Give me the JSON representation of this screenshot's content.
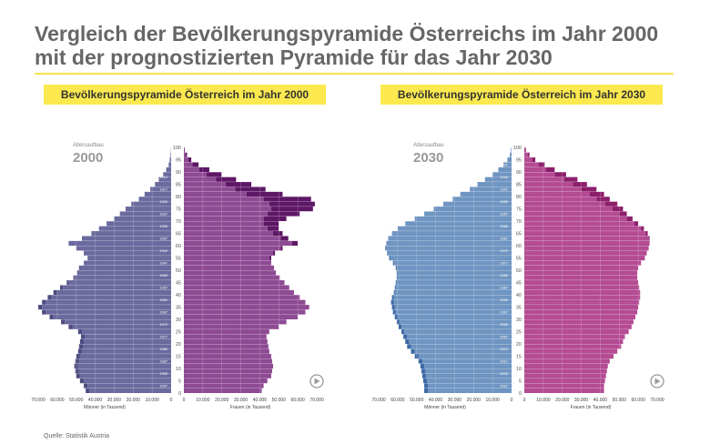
{
  "header": {
    "title": "Vergleich der Bevölkerungspyramide Österreichs im Jahr 2000 mit der prognostizierten Pyramide für das Jahr 2030"
  },
  "panels": [
    {
      "banner": "Bevölkerungspyramide Österreich im Jahr 2000"
    },
    {
      "banner": "Bevölkerungspyramide Österreich im Jahr 2030"
    }
  ],
  "footer": {
    "source": "Quelle: Statistik Austria"
  },
  "colors": {
    "banner": "#fbe94f",
    "male_2000": "#6b6a9e",
    "female_2000": "#8e4a93",
    "male_2030": "#6f95c2",
    "female_2030": "#b44b93",
    "male_surplus_2000": "#4d4b80",
    "female_surplus_2000": "#5e1766",
    "male_surplus_2030": "#3e6aa6",
    "female_surplus_2030": "#8c1f6b"
  },
  "chart_data": [
    {
      "type": "bar",
      "orientation": "horizontal-pyramid",
      "year_label": "2000",
      "age_axis_label": "Altersaufbau",
      "age_ticks": [
        0,
        5,
        10,
        15,
        20,
        25,
        30,
        35,
        40,
        45,
        50,
        55,
        60,
        65,
        70,
        75,
        80,
        85,
        90,
        95,
        100
      ],
      "birth_year_ticks": [
        "1997",
        "1992",
        "1987",
        "1982",
        "1977",
        "1972",
        "1967",
        "1962",
        "1957",
        "1952",
        "1947",
        "1942",
        "1937",
        "1932",
        "1927",
        "1922",
        "1917",
        "1912",
        "1907"
      ],
      "x_ticks_left": [
        "70.000",
        "60.000",
        "50.000",
        "40.000",
        "30.000",
        "20.000",
        "10.000",
        "0"
      ],
      "x_ticks_right": [
        "0",
        "10.000",
        "20.000",
        "30.000",
        "40.000",
        "50.000",
        "60.000",
        "70.000"
      ],
      "xlabel_left": "Männer (in Tausend)",
      "xlabel_right": "Frauen (in Tausend)",
      "xlim": [
        0,
        70000
      ],
      "ages": [
        0,
        2,
        4,
        6,
        8,
        10,
        12,
        14,
        16,
        18,
        20,
        22,
        24,
        26,
        28,
        30,
        32,
        34,
        36,
        38,
        40,
        42,
        44,
        46,
        48,
        50,
        52,
        54,
        56,
        58,
        60,
        62,
        64,
        66,
        68,
        70,
        72,
        74,
        76,
        78,
        80,
        82,
        84,
        86,
        88,
        90,
        92,
        94,
        96,
        98
      ],
      "series": [
        {
          "name": "Männer",
          "values": [
            43000,
            44000,
            46000,
            48000,
            48500,
            49000,
            48500,
            48000,
            47000,
            46500,
            46000,
            45500,
            47000,
            52000,
            56000,
            62000,
            66000,
            68000,
            66000,
            63000,
            60000,
            57000,
            54000,
            51000,
            49000,
            48000,
            46000,
            44000,
            46000,
            50000,
            54000,
            47000,
            42000,
            38000,
            34000,
            30000,
            27000,
            24000,
            21000,
            17000,
            14000,
            11000,
            8500,
            6500,
            4200,
            2600,
            1300,
            700,
            300,
            100
          ]
        },
        {
          "name": "Frauen",
          "values": [
            41000,
            42000,
            44000,
            46000,
            46500,
            47000,
            46500,
            46000,
            45000,
            44500,
            44000,
            43500,
            45000,
            50000,
            54000,
            60000,
            64000,
            66000,
            64000,
            61000,
            58000,
            55500,
            53000,
            50500,
            48500,
            47500,
            46000,
            45000,
            47000,
            51000,
            57000,
            51000,
            47000,
            44000,
            42000,
            42000,
            44000,
            46000,
            45000,
            42000,
            33000,
            27000,
            22000,
            17000,
            12000,
            8000,
            4500,
            2300,
            1000,
            300
          ]
        },
        {
          "name": "Männerüberschuss",
          "values": [
            2000,
            2000,
            2000,
            2000,
            2000,
            2000,
            2000,
            2000,
            2000,
            2000,
            2000,
            2000,
            2000,
            2000,
            2000,
            2000,
            2000,
            2000,
            2000,
            2000,
            2000,
            1500,
            1000,
            500,
            500,
            500,
            0,
            0,
            0,
            0,
            0,
            0,
            0,
            0,
            0,
            0,
            0,
            0,
            0,
            0,
            0,
            0,
            0,
            0,
            0,
            0,
            0,
            0,
            0,
            0
          ]
        },
        {
          "name": "Frauenüberschuss",
          "values": [
            0,
            0,
            0,
            0,
            0,
            0,
            0,
            0,
            0,
            0,
            0,
            0,
            0,
            0,
            0,
            0,
            0,
            0,
            0,
            0,
            0,
            0,
            0,
            0,
            0,
            0,
            0,
            1000,
            1000,
            1000,
            3000,
            4000,
            5000,
            6000,
            8000,
            12000,
            17000,
            22000,
            24000,
            25000,
            19000,
            16000,
            13500,
            10500,
            7800,
            5400,
            3200,
            1600,
            700,
            200
          ]
        }
      ]
    },
    {
      "type": "bar",
      "orientation": "horizontal-pyramid",
      "year_label": "2030",
      "age_axis_label": "Altersaufbau",
      "age_ticks": [
        0,
        5,
        10,
        15,
        20,
        25,
        30,
        35,
        40,
        45,
        50,
        55,
        60,
        65,
        70,
        75,
        80,
        85,
        90,
        95,
        100
      ],
      "birth_year_ticks": [
        "2027",
        "2022",
        "2017",
        "2012",
        "2007",
        "2002",
        "1997",
        "1992",
        "1987",
        "1982",
        "1977",
        "1972",
        "1967",
        "1962",
        "1957",
        "1952",
        "1947",
        "1942",
        "1937"
      ],
      "x_ticks_left": [
        "70.000",
        "60.000",
        "50.000",
        "40.000",
        "30.000",
        "20.000",
        "10.000",
        "0"
      ],
      "x_ticks_right": [
        "0",
        "10.000",
        "20.000",
        "30.000",
        "40.000",
        "50.000",
        "60.000",
        "70.000"
      ],
      "xlabel_left": "Männer (in Tausend)",
      "xlabel_right": "Frauen (in Tausend)",
      "xlim": [
        0,
        70000
      ],
      "ages": [
        0,
        2,
        4,
        6,
        8,
        10,
        12,
        14,
        16,
        18,
        20,
        22,
        24,
        26,
        28,
        30,
        32,
        34,
        36,
        38,
        40,
        42,
        44,
        46,
        48,
        50,
        52,
        54,
        56,
        58,
        60,
        62,
        64,
        66,
        68,
        70,
        72,
        74,
        76,
        78,
        80,
        82,
        84,
        86,
        88,
        90,
        92,
        94,
        96,
        98
      ],
      "series": [
        {
          "name": "Männer",
          "values": [
            44000,
            44000,
            44500,
            45000,
            45500,
            46000,
            47000,
            49000,
            51000,
            53000,
            54000,
            55000,
            56500,
            58000,
            59000,
            60000,
            61000,
            61500,
            62000,
            62000,
            61500,
            61000,
            60500,
            60000,
            60000,
            60500,
            62000,
            64000,
            65000,
            66000,
            66000,
            65000,
            63000,
            60000,
            56000,
            51000,
            46000,
            41000,
            36000,
            31000,
            27000,
            22000,
            18000,
            14000,
            10000,
            7000,
            4300,
            2200,
            900,
            300
          ]
        },
        {
          "name": "Frauen",
          "values": [
            42000,
            42000,
            42500,
            43000,
            43500,
            44000,
            45000,
            47000,
            49000,
            51000,
            52000,
            53000,
            55000,
            56500,
            57500,
            58500,
            59500,
            60000,
            60500,
            61000,
            61000,
            60500,
            60000,
            59500,
            59500,
            60000,
            61500,
            63500,
            64500,
            65500,
            66000,
            65500,
            64000,
            61500,
            58000,
            54000,
            50000,
            46500,
            42500,
            38000,
            34500,
            30000,
            25500,
            21000,
            16000,
            11500,
            7500,
            4000,
            1800,
            600
          ]
        },
        {
          "name": "Männerüberschuss",
          "values": [
            2000,
            2000,
            2000,
            2000,
            2000,
            2000,
            2000,
            2000,
            2000,
            2000,
            2000,
            2000,
            1500,
            1500,
            1500,
            1500,
            1500,
            1500,
            1500,
            1000,
            500,
            500,
            500,
            500,
            500,
            500,
            500,
            500,
            500,
            500,
            0,
            0,
            0,
            0,
            0,
            0,
            0,
            0,
            0,
            0,
            0,
            0,
            0,
            0,
            0,
            0,
            0,
            0,
            0,
            0
          ]
        },
        {
          "name": "Frauenüberschuss",
          "values": [
            0,
            0,
            0,
            0,
            0,
            0,
            0,
            0,
            0,
            0,
            0,
            0,
            0,
            0,
            0,
            0,
            0,
            0,
            0,
            0,
            0,
            0,
            0,
            0,
            0,
            0,
            0,
            0,
            0,
            0,
            0,
            500,
            1000,
            1500,
            2000,
            3000,
            4000,
            5500,
            6500,
            7000,
            7500,
            8000,
            7500,
            7000,
            6000,
            4500,
            3200,
            1800,
            900,
            300
          ]
        }
      ]
    }
  ]
}
